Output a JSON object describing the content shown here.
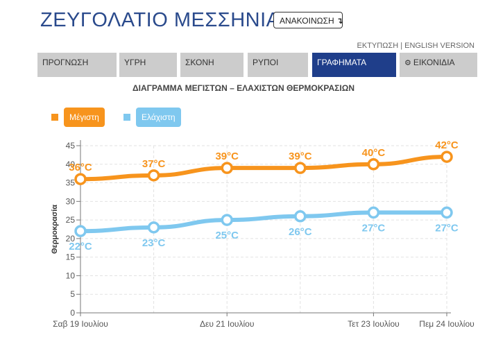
{
  "header": {
    "title": "ΖΕΥΓΟΛΑΤΙΟ ΜΕΣΣΗΝΙΑΣ",
    "announce_label": "ΑΝΑΚΟΙΝΩΣΗ",
    "announce_icon": "arrow-down-return-icon",
    "print_link": "ΕΚΤΥΠΩΣΗ",
    "separator": "|",
    "english_link": "ENGLISH VERSION"
  },
  "tabs": [
    {
      "label": "ΠΡΟΓΝΩΣΗ"
    },
    {
      "label": "ΥΓΡΗ"
    },
    {
      "label": "ΣΚΟΝΗ"
    },
    {
      "label": "ΡΥΠΟΙ"
    },
    {
      "label": "ΓΡΑΦΗΜΑΤΑ"
    },
    {
      "label": "ΕΙΚΟΝΙΔΙΑ"
    }
  ],
  "active_tab": "ΓΡΑΦΗΜΑΤΑ",
  "colors": {
    "brand": "#2a4a8c",
    "active_tab": "#1f3e8a",
    "max_series": "#f7941d",
    "min_series": "#7fc8ef",
    "tab_bg": "#cccccc"
  },
  "chart_data": {
    "type": "line",
    "title": "ΔΙΑΓΡΑΜΜΑ ΜΕΓΙΣΤΩΝ – ΕΛΑΧΙΣΤΩΝ ΘΕΡΜΟΚΡΑΣΙΩΝ",
    "ylabel": "Θερμοκρασία",
    "xlabel": "",
    "ylim": [
      0,
      45
    ],
    "yticks": [
      0,
      5,
      10,
      15,
      20,
      25,
      30,
      35,
      40,
      45
    ],
    "grid": true,
    "legend_position": "top-left",
    "x": [
      19,
      20,
      21,
      22,
      23,
      24
    ],
    "x_tick_labels": [
      {
        "x": 19,
        "label": "Σαβ 19 Ιουλίου"
      },
      {
        "x": 21,
        "label": "Δευ 21 Ιουλίου"
      },
      {
        "x": 23,
        "label": "Τετ 23 Ιουλίου"
      },
      {
        "x": 24,
        "label": "Πεμ 24 Ιουλίου"
      }
    ],
    "series": [
      {
        "name": "Μέγιστη",
        "color": "#f7941d",
        "values": [
          36,
          37,
          39,
          39,
          40,
          42
        ],
        "labels": [
          "36°C",
          "37°C",
          "39°C",
          "39°C",
          "40°C",
          "42°C"
        ]
      },
      {
        "name": "Ελάχιστη",
        "color": "#7fc8ef",
        "values": [
          22,
          23,
          25,
          26,
          27,
          27
        ],
        "labels": [
          "22°C",
          "23°C",
          "25°C",
          "26°C",
          "27°C",
          "27°C"
        ]
      }
    ]
  }
}
